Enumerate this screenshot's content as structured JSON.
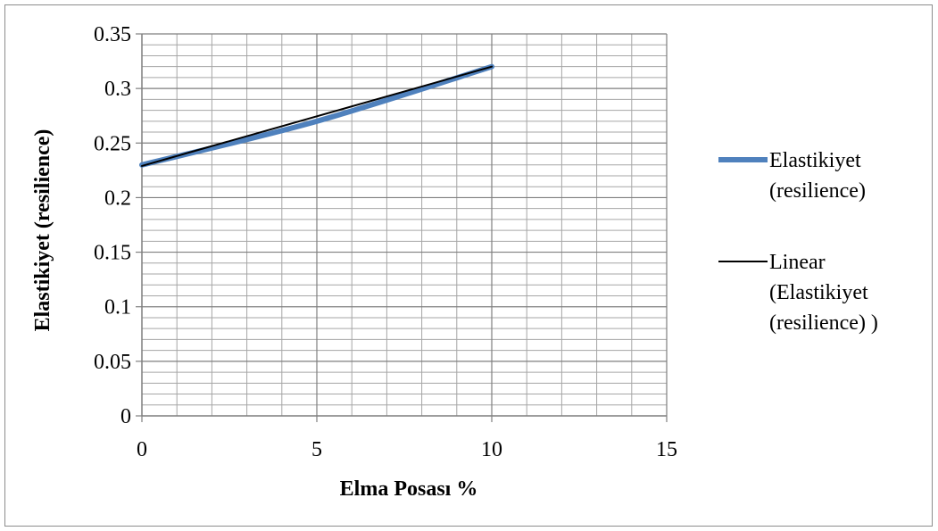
{
  "chart_data": {
    "type": "line",
    "xlabel": "Elma Posası %",
    "ylabel": "Elastikiyet (resilience)",
    "xlim": [
      0,
      15
    ],
    "ylim": [
      0,
      0.35
    ],
    "x_ticks": [
      0,
      5,
      10,
      15
    ],
    "x_tick_labels": [
      "0",
      "5",
      "10",
      "15"
    ],
    "y_ticks": [
      0,
      0.05,
      0.1,
      0.15,
      0.2,
      0.25,
      0.3,
      0.35
    ],
    "y_tick_labels": [
      "0",
      "0.05",
      "0.1",
      "0.15",
      "0.2",
      "0.25",
      "0.3",
      "0.35"
    ],
    "grid": true,
    "legend_position": "right",
    "series": [
      {
        "name": "Elastikiyet (resilience)",
        "legend_lines": [
          "Elastikiyet",
          "(resilience)"
        ],
        "color": "#4f81bd",
        "style": "smooth",
        "x": [
          0,
          5,
          10
        ],
        "y": [
          0.23,
          0.27,
          0.32
        ]
      },
      {
        "name": "Linear (Elastikiyet (resilience) )",
        "legend_lines": [
          "Linear",
          "(Elastikiyet",
          "(resilience) )"
        ],
        "color": "#000000",
        "style": "trendline",
        "x": [
          0,
          10
        ],
        "y": [
          0.229,
          0.32
        ]
      }
    ]
  }
}
